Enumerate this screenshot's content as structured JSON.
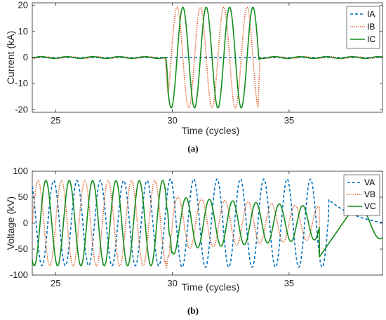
{
  "chart_data": [
    {
      "type": "line",
      "panel_label": "(a)",
      "xlabel": "Time (cycles)",
      "ylabel": "Current (kA)",
      "xlim": [
        24,
        39
      ],
      "ylim": [
        -21,
        21
      ],
      "xticks": [
        25,
        30,
        35
      ],
      "yticks": [
        20,
        10,
        0,
        -10,
        -20
      ],
      "grid": false,
      "legend_position": "top-right",
      "series": [
        {
          "name": "IA",
          "color": "#0072BD",
          "style": "dashed",
          "points": [
            [
              24,
              0
            ],
            [
              39,
              0
            ]
          ]
        },
        {
          "name": "IB",
          "color": "#D95319",
          "style": "dotted",
          "fault_start": 29.7,
          "fault_end": 33.75,
          "amplitude": 19.3,
          "phase": 0.5
        },
        {
          "name": "IC",
          "color": "#138D1A",
          "style": "solid",
          "fault_start": 29.7,
          "fault_end": 33.75,
          "amplitude": 19.3,
          "phase": 0.0
        }
      ]
    },
    {
      "type": "line",
      "panel_label": "(b)",
      "xlabel": "Time (cycles)",
      "ylabel": "Voltage (kV)",
      "xlim": [
        24,
        39
      ],
      "ylim": [
        -100,
        100
      ],
      "xticks": [
        25,
        30,
        35
      ],
      "yticks": [
        100,
        50,
        0,
        -50,
        -100
      ],
      "grid": false,
      "legend_position": "top-right",
      "series": [
        {
          "name": "VA",
          "color": "#0072BD",
          "style": "dashed"
        },
        {
          "name": "VB",
          "color": "#D95319",
          "style": "dotted"
        },
        {
          "name": "VC",
          "color": "#138D1A",
          "style": "solid"
        }
      ]
    }
  ]
}
